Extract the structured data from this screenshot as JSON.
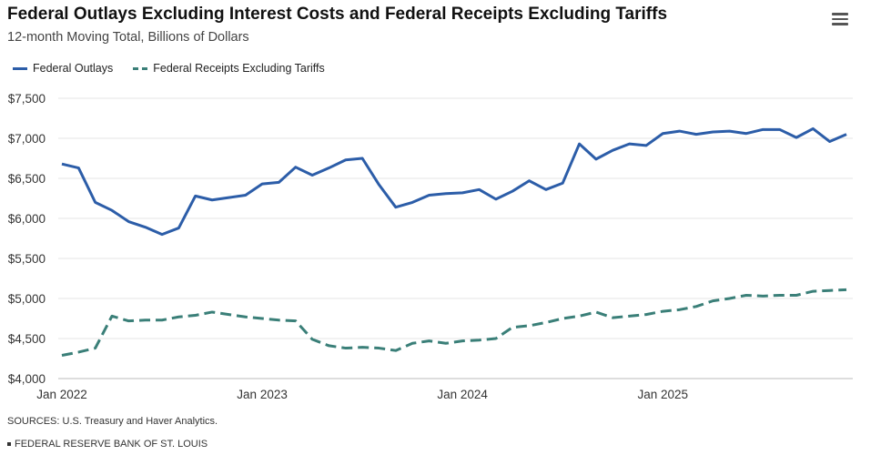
{
  "header": {
    "title": "Federal Outlays Excluding Interest Costs and Federal Receipts Excluding Tariffs",
    "subtitle": "12-month Moving Total, Billions of Dollars",
    "menu_icon": "hamburger-menu-icon"
  },
  "legend": {
    "items": [
      {
        "label": "Federal Outlays"
      },
      {
        "label": "Federal Receipts Excluding Tariffs"
      }
    ]
  },
  "footer": {
    "sources": "SOURCES: U.S. Treasury and Haver Analytics.",
    "credit": "FEDERAL RESERVE BANK OF ST. LOUIS"
  },
  "chart_data": {
    "type": "line",
    "title": "Federal Outlays Excluding Interest Costs and Federal Receipts Excluding Tariffs",
    "subtitle": "12-month Moving Total, Billions of Dollars",
    "xlabel": "",
    "ylabel": "",
    "x_start": "Jan 2022",
    "x_frequency": "monthly",
    "x_tick_labels": [
      "Jan 2022",
      "Jan 2023",
      "Jan 2024",
      "Jan 2025"
    ],
    "x_tick_index": [
      0,
      12,
      24,
      36
    ],
    "y_tick_labels": [
      "$4,000",
      "$4,500",
      "$5,000",
      "$5,500",
      "$6,000",
      "$6,500",
      "$7,000",
      "$7,500"
    ],
    "y_ticks": [
      4000,
      4500,
      5000,
      5500,
      6000,
      6500,
      7000,
      7500
    ],
    "ylim": [
      4000,
      7500
    ],
    "grid": true,
    "legend_position": "top-left",
    "series": [
      {
        "name": "Federal Outlays",
        "color": "#2c5da8",
        "style": "solid",
        "values": [
          6680,
          6630,
          6200,
          6100,
          5960,
          5890,
          5800,
          5880,
          6280,
          6230,
          6260,
          6290,
          6430,
          6450,
          6640,
          6540,
          6630,
          6730,
          6750,
          6420,
          6140,
          6200,
          6290,
          6310,
          6320,
          6360,
          6240,
          6340,
          6470,
          6360,
          6440,
          6930,
          6740,
          6850,
          6930,
          6910,
          7060,
          7090,
          7050,
          7080,
          7090,
          7060,
          7110,
          7110,
          7010,
          7120,
          6960,
          7050
        ]
      },
      {
        "name": "Federal Receipts Excluding Tariffs",
        "color": "#3a7f78",
        "style": "dashed",
        "values": [
          4290,
          4330,
          4380,
          4780,
          4720,
          4730,
          4730,
          4770,
          4790,
          4830,
          4800,
          4770,
          4750,
          4730,
          4720,
          4490,
          4410,
          4380,
          4390,
          4380,
          4350,
          4440,
          4470,
          4440,
          4470,
          4480,
          4500,
          4640,
          4660,
          4700,
          4750,
          4780,
          4830,
          4760,
          4780,
          4800,
          4840,
          4860,
          4900,
          4970,
          5000,
          5040,
          5030,
          5040,
          5040,
          5090,
          5100,
          5110
        ]
      }
    ]
  }
}
